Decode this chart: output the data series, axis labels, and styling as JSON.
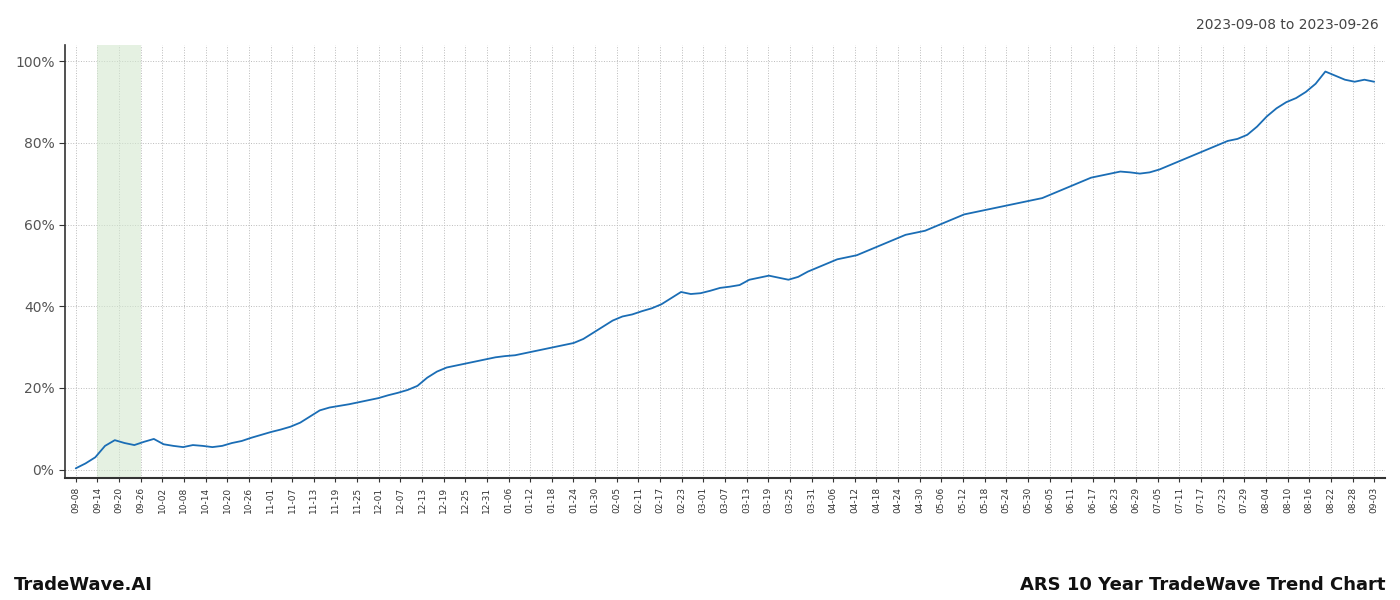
{
  "title_top_right": "2023-09-08 to 2023-09-26",
  "title_bottom_left": "TradeWave.AI",
  "title_bottom_right": "ARS 10 Year TradeWave Trend Chart",
  "line_color": "#1a6db5",
  "line_width": 1.3,
  "shaded_region_color": "#d4e8d0",
  "shaded_region_alpha": 0.6,
  "background_color": "#ffffff",
  "grid_color": "#bbbbbb",
  "y_ticks": [
    0,
    20,
    40,
    60,
    80,
    100
  ],
  "y_tick_labels": [
    "0%",
    "20%",
    "40%",
    "60%",
    "80%",
    "100%"
  ],
  "ylim": [
    -2,
    104
  ],
  "x_tick_labels": [
    "09-08",
    "09-14",
    "09-20",
    "09-26",
    "10-02",
    "10-08",
    "10-14",
    "10-20",
    "10-26",
    "11-01",
    "11-07",
    "11-13",
    "11-19",
    "11-25",
    "12-01",
    "12-07",
    "12-13",
    "12-19",
    "12-25",
    "12-31",
    "01-06",
    "01-12",
    "01-18",
    "01-24",
    "01-30",
    "02-05",
    "02-11",
    "02-17",
    "02-23",
    "03-01",
    "03-07",
    "03-13",
    "03-19",
    "03-25",
    "03-31",
    "04-06",
    "04-12",
    "04-18",
    "04-24",
    "04-30",
    "05-06",
    "05-12",
    "05-18",
    "05-24",
    "05-30",
    "06-05",
    "06-11",
    "06-17",
    "06-23",
    "06-29",
    "07-05",
    "07-11",
    "07-17",
    "07-23",
    "07-29",
    "08-04",
    "08-10",
    "08-16",
    "08-22",
    "08-28",
    "09-03"
  ],
  "shaded_x_start_label": "09-14",
  "shaded_x_end_label": "09-26",
  "data_y": [
    0.3,
    1.5,
    3.0,
    5.8,
    7.2,
    6.5,
    6.0,
    6.8,
    7.5,
    6.2,
    5.8,
    5.5,
    6.0,
    5.8,
    5.5,
    5.8,
    6.5,
    7.0,
    7.8,
    8.5,
    9.2,
    9.8,
    10.5,
    11.5,
    13.0,
    14.5,
    15.2,
    15.6,
    16.0,
    16.5,
    17.0,
    17.5,
    18.2,
    18.8,
    19.5,
    20.5,
    22.5,
    24.0,
    25.0,
    25.5,
    26.0,
    26.5,
    27.0,
    27.5,
    27.8,
    28.0,
    28.5,
    29.0,
    29.5,
    30.0,
    30.5,
    31.0,
    32.0,
    33.5,
    35.0,
    36.5,
    37.5,
    38.0,
    38.8,
    39.5,
    40.5,
    42.0,
    43.5,
    43.0,
    43.2,
    43.8,
    44.5,
    44.8,
    45.2,
    46.5,
    47.0,
    47.5,
    47.0,
    46.5,
    47.2,
    48.5,
    49.5,
    50.5,
    51.5,
    52.0,
    52.5,
    53.5,
    54.5,
    55.5,
    56.5,
    57.5,
    58.0,
    58.5,
    59.5,
    60.5,
    61.5,
    62.5,
    63.0,
    63.5,
    64.0,
    64.5,
    65.0,
    65.5,
    66.0,
    66.5,
    67.5,
    68.5,
    69.5,
    70.5,
    71.5,
    72.0,
    72.5,
    73.0,
    72.8,
    72.5,
    72.8,
    73.5,
    74.5,
    75.5,
    76.5,
    77.5,
    78.5,
    79.5,
    80.5,
    81.0,
    82.0,
    84.0,
    86.5,
    88.5,
    90.0,
    91.0,
    92.5,
    94.5,
    97.5,
    96.5,
    95.5,
    95.0,
    95.5,
    95.0
  ]
}
